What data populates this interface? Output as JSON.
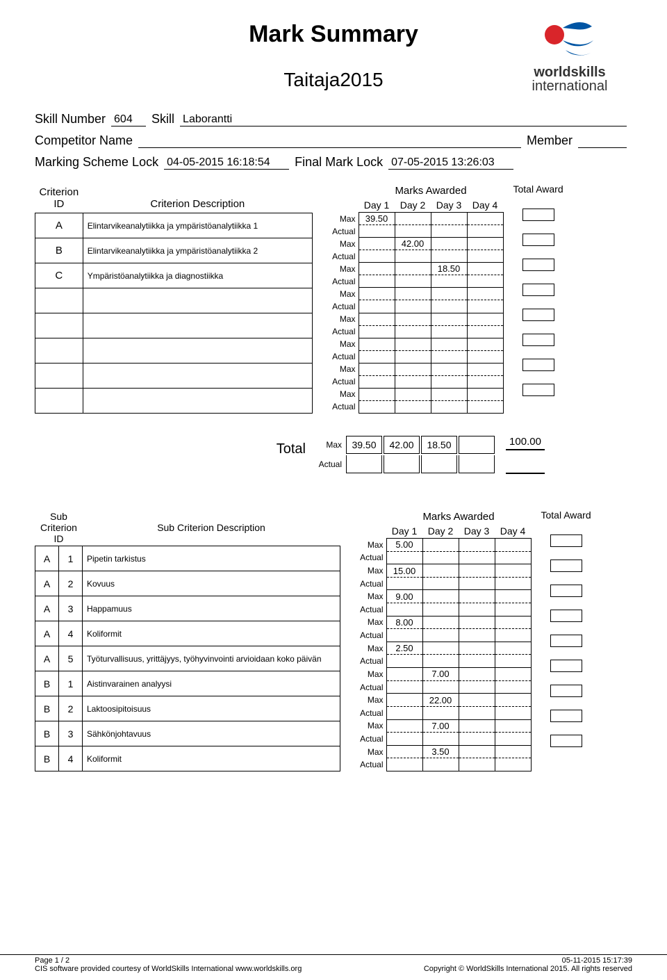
{
  "title": "Mark Summary",
  "subtitle": "Taitaja2015",
  "logo": {
    "top": "worldskills",
    "bottom": "international"
  },
  "meta": {
    "skill_number_label": "Skill Number",
    "skill_number": "604",
    "skill_label": "Skill",
    "skill_name": "Laborantti",
    "competitor_label": "Competitor Name",
    "competitor_name": "",
    "member_label": "Member",
    "member": "",
    "marking_lock_label": "Marking Scheme Lock",
    "marking_lock": "04-05-2015 16:18:54",
    "final_lock_label": "Final Mark Lock",
    "final_lock": "07-05-2015 13:26:03"
  },
  "criteria_headers": {
    "id": "Criterion ID",
    "desc": "Criterion Description",
    "marks": "Marks Awarded",
    "days": [
      "Day 1",
      "Day 2",
      "Day 3",
      "Day 4"
    ],
    "award": "Total Award",
    "max": "Max",
    "actual": "Actual"
  },
  "criteria": [
    {
      "id": "A",
      "desc": "Elintarvikeanalytiikka ja ympäristöanalytiikka 1",
      "max": [
        "39.50",
        "",
        "",
        ""
      ]
    },
    {
      "id": "B",
      "desc": "Elintarvikeanalytiikka ja ympäristöanalytiikka 2",
      "max": [
        "",
        "42.00",
        "",
        ""
      ]
    },
    {
      "id": "C",
      "desc": "Ympäristöanalytiikka ja diagnostiikka",
      "max": [
        "",
        "",
        "18.50",
        ""
      ]
    },
    {
      "id": "",
      "desc": "",
      "max": [
        "",
        "",
        "",
        ""
      ]
    },
    {
      "id": "",
      "desc": "",
      "max": [
        "",
        "",
        "",
        ""
      ]
    },
    {
      "id": "",
      "desc": "",
      "max": [
        "",
        "",
        "",
        ""
      ]
    },
    {
      "id": "",
      "desc": "",
      "max": [
        "",
        "",
        "",
        ""
      ]
    },
    {
      "id": "",
      "desc": "",
      "max": [
        "",
        "",
        "",
        ""
      ]
    }
  ],
  "total": {
    "label": "Total",
    "max": [
      "39.50",
      "42.00",
      "18.50",
      ""
    ],
    "award": "100.00"
  },
  "sub_headers": {
    "id": "Sub Criterion ID",
    "desc": "Sub Criterion Description"
  },
  "subcriteria": [
    {
      "id1": "A",
      "id2": "1",
      "desc": "Pipetin tarkistus",
      "max": [
        "5.00",
        "",
        "",
        ""
      ]
    },
    {
      "id1": "A",
      "id2": "2",
      "desc": "Kovuus",
      "max": [
        "15.00",
        "",
        "",
        ""
      ]
    },
    {
      "id1": "A",
      "id2": "3",
      "desc": "Happamuus",
      "max": [
        "9.00",
        "",
        "",
        ""
      ]
    },
    {
      "id1": "A",
      "id2": "4",
      "desc": "Koliformit",
      "max": [
        "8.00",
        "",
        "",
        ""
      ]
    },
    {
      "id1": "A",
      "id2": "5",
      "desc": "Työturvallisuus, yrittäjyys, työhyvinvointi arvioidaan koko päivän",
      "max": [
        "2.50",
        "",
        "",
        ""
      ]
    },
    {
      "id1": "B",
      "id2": "1",
      "desc": "Aistinvarainen analyysi",
      "max": [
        "",
        "7.00",
        "",
        ""
      ]
    },
    {
      "id1": "B",
      "id2": "2",
      "desc": "Laktoosipitoisuus",
      "max": [
        "",
        "22.00",
        "",
        ""
      ]
    },
    {
      "id1": "B",
      "id2": "3",
      "desc": "Sähkönjohtavuus",
      "max": [
        "",
        "7.00",
        "",
        ""
      ]
    },
    {
      "id1": "B",
      "id2": "4",
      "desc": "Koliformit",
      "max": [
        "",
        "3.50",
        "",
        ""
      ]
    }
  ],
  "footer": {
    "page": "Page 1 / 2",
    "timestamp": "05-11-2015 15:17:39",
    "credit": "CIS software provided courtesy of WorldSkills International www.worldskills.org",
    "copyright": "Copyright © WorldSkills International 2015. All rights reserved"
  }
}
